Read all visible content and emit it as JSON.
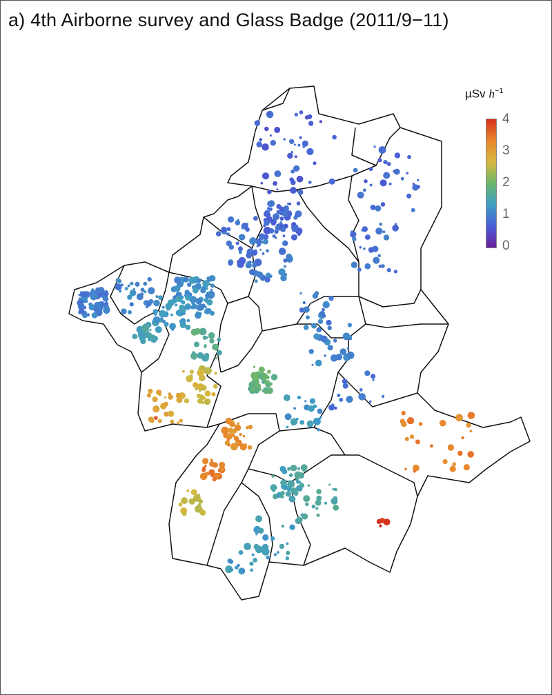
{
  "title": "a) 4th Airborne survey and Glass Badge (2011/9−11)",
  "legend": {
    "unit_main": "µSv ",
    "unit_h": "h",
    "unit_exp": "−1",
    "ticks": [
      "4",
      "3",
      "2",
      "1",
      "0"
    ],
    "range": [
      0,
      4
    ],
    "colors": [
      "#6a1f9c",
      "#4a5fd6",
      "#3f9dc4",
      "#6bb56c",
      "#d6b840",
      "#e8862e",
      "#d7301f"
    ]
  }
}
